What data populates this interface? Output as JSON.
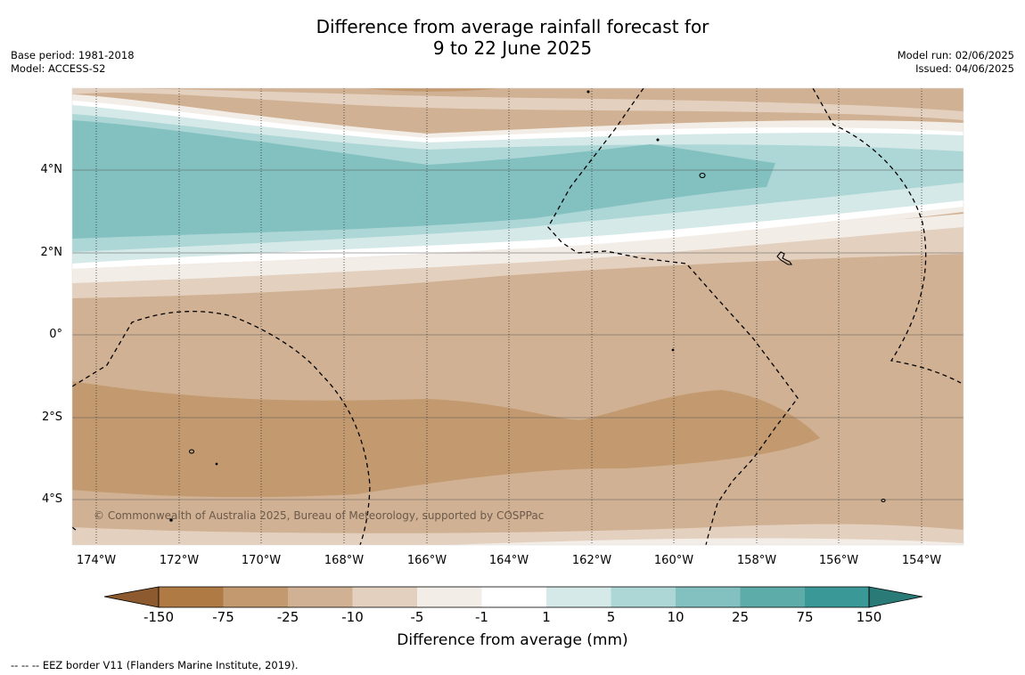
{
  "title_line1": "Difference from average rainfall forecast for",
  "title_line2": "9 to 22 June 2025",
  "base_period": "Base period: 1981-2018",
  "model": "Model: ACCESS-S2",
  "model_run": "Model run: 02/06/2025",
  "issued": "Issued: 04/06/2025",
  "copyright": "© Commonwealth of Australia 2025, Bureau of Meteorology, supported by COSPPac",
  "footnote": "--  --  -- EEZ border V11 (Flanders Marine Institute, 2019).",
  "lat_labels": [
    "4°N",
    "2°N",
    "0°",
    "2°S",
    "4°S"
  ],
  "lon_labels": [
    "174°W",
    "172°W",
    "170°W",
    "168°W",
    "166°W",
    "164°W",
    "162°W",
    "160°W",
    "158°W",
    "156°W",
    "154°W"
  ],
  "colorbar": {
    "title": "Difference from average (mm)",
    "boundaries": [
      "-150",
      "-75",
      "-25",
      "-10",
      "-5",
      "-1",
      "1",
      "5",
      "10",
      "25",
      "75",
      "150"
    ],
    "colors": [
      "#8c5a2e",
      "#b07a45",
      "#c39a70",
      "#d1b193",
      "#e3d0bf",
      "#f3ede7",
      "#ffffff",
      "#d5e9e8",
      "#add7d6",
      "#83c1c0",
      "#5eacaa",
      "#3a9996",
      "#2a7a77"
    ]
  },
  "map_colors": {
    "dry_strong": "#c39a70",
    "dry": "#d1b193",
    "dry_light": "#e3d0bf",
    "dry_faint": "#f3ede7",
    "wet_faint": "#d5e9e8",
    "wet": "#add7d6",
    "wet_strong": "#83c1c0"
  }
}
